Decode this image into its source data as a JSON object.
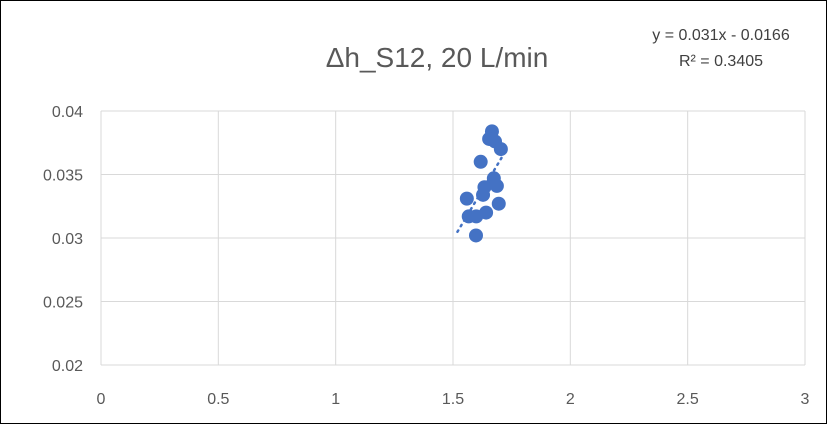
{
  "chart_data": {
    "type": "scatter",
    "title": "Δh_S12, 20 L/min",
    "xlabel": "",
    "ylabel": "",
    "xlim": [
      0,
      3
    ],
    "ylim": [
      0.02,
      0.04
    ],
    "xticks": [
      0,
      0.5,
      1,
      1.5,
      2,
      2.5,
      3
    ],
    "xtick_labels": [
      "0",
      "0.5",
      "1",
      "1.5",
      "2",
      "2.5",
      "3"
    ],
    "yticks": [
      0.02,
      0.025,
      0.03,
      0.035,
      0.04
    ],
    "ytick_labels": [
      "0.02",
      "0.025",
      "0.03",
      "0.035",
      "0.04"
    ],
    "grid": true,
    "legend": "none",
    "marker_color": "#4472C4",
    "trendline": {
      "type": "linear",
      "style": "dotted",
      "color": "#4472C4",
      "slope": 0.031,
      "intercept": -0.0166,
      "equation": "y = 0.031x - 0.0166",
      "r_squared": "R² = 0.3405"
    },
    "series": [
      {
        "x": [
          1.666,
          1.654,
          1.679,
          1.704,
          1.618,
          1.674,
          1.687,
          1.634,
          1.628,
          1.559,
          1.695,
          1.641,
          1.567,
          1.599,
          1.598
        ],
        "y": [
          0.0384,
          0.0378,
          0.0376,
          0.037,
          0.036,
          0.0347,
          0.0341,
          0.034,
          0.0334,
          0.0331,
          0.0327,
          0.032,
          0.0317,
          0.0317,
          0.0302
        ]
      }
    ]
  }
}
